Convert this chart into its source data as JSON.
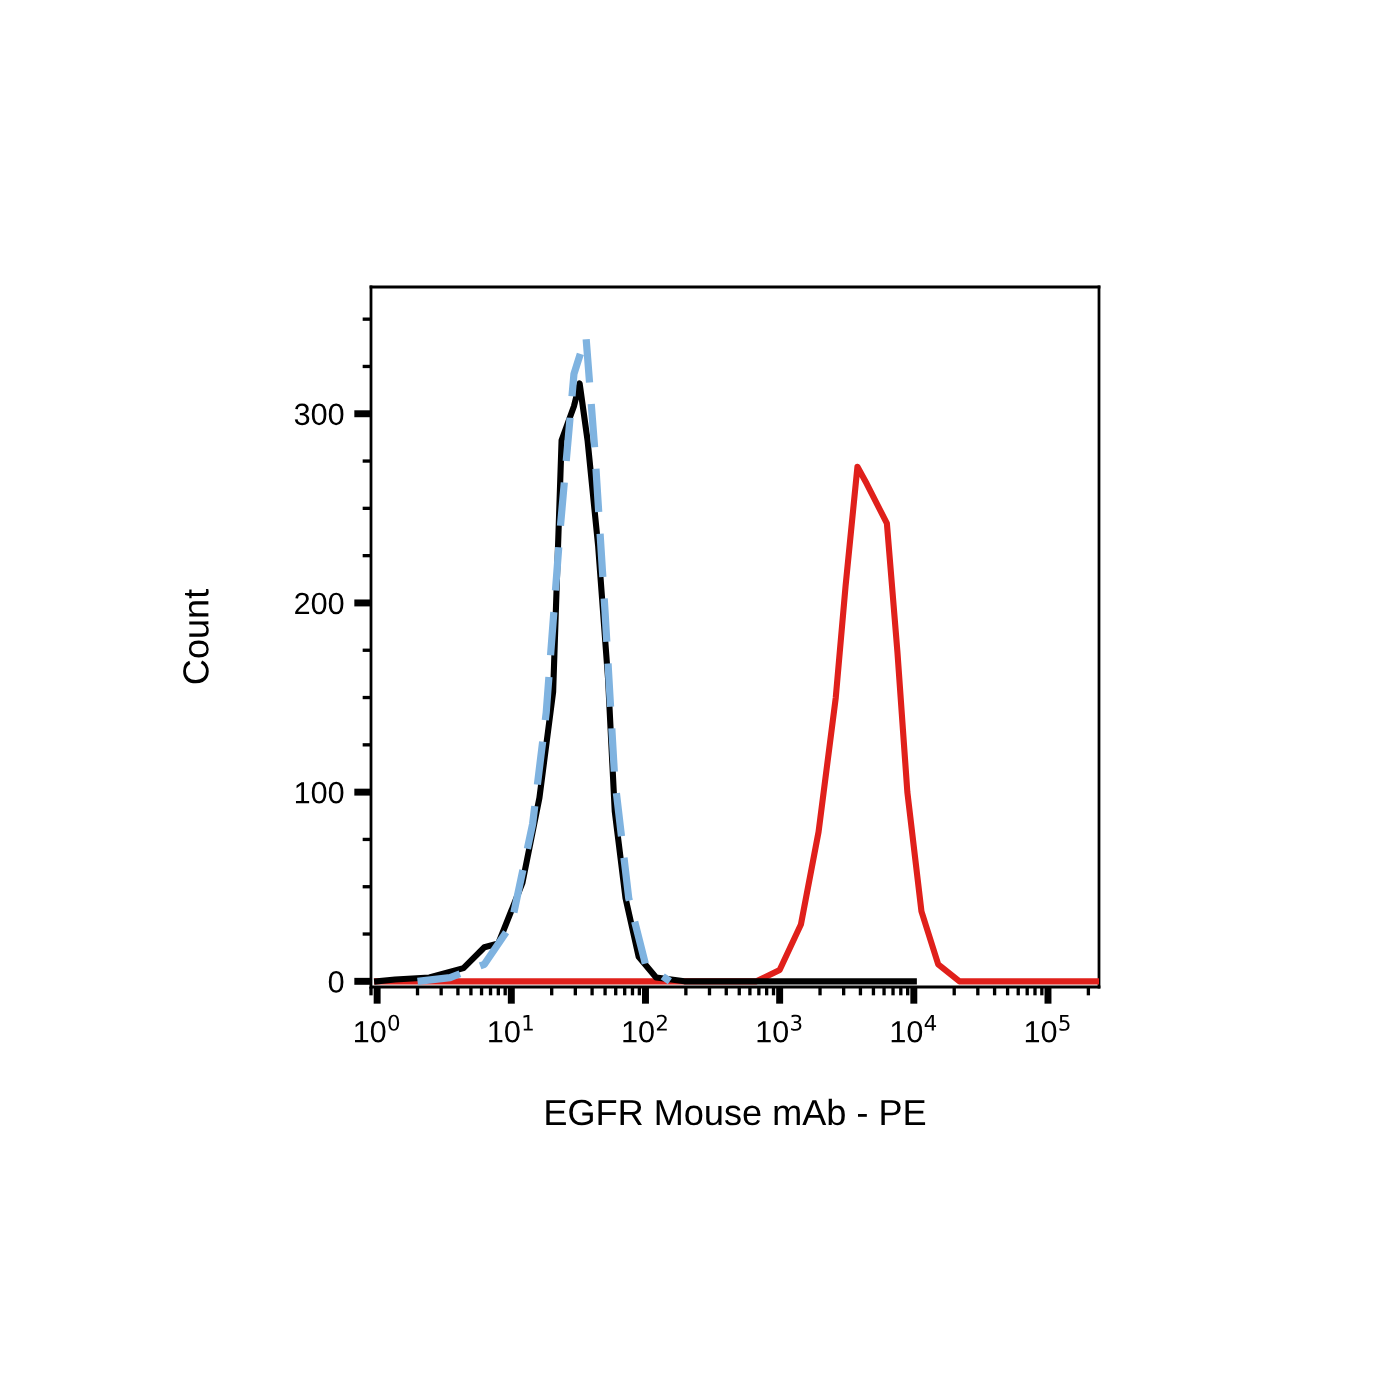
{
  "chart_data": {
    "type": "line",
    "xlabel": "EGFR Mouse mAb - PE",
    "ylabel": "Count",
    "log": "x",
    "xlim": [
      0.9,
      240000
    ],
    "ylim": [
      -3,
      367
    ],
    "xticks": [
      {
        "value": 1,
        "label": "10$^{0}$"
      },
      {
        "value": 10,
        "label": "10$^{1}$"
      },
      {
        "value": 100,
        "label": "10$^{2}$"
      },
      {
        "value": 1000,
        "label": "10$^{3}$"
      },
      {
        "value": 10000,
        "label": "10$^{4}$"
      },
      {
        "value": 100000,
        "label": "10$^{5}$"
      }
    ],
    "yticks": [
      0,
      100,
      200,
      300
    ],
    "marker": "none",
    "series": [
      {
        "color": "#e0201b",
        "line_style": "solid",
        "x": [
          1.0,
          100,
          671,
          1000,
          1440,
          1950,
          2620,
          3100,
          3800,
          4460,
          6300,
          7550,
          8950,
          11400,
          15200,
          21900,
          240000
        ],
        "values": [
          0,
          0,
          0,
          6,
          30,
          79,
          150,
          209,
          272,
          263,
          242,
          174,
          100,
          37,
          9,
          0,
          0
        ]
      },
      {
        "color": "#000000",
        "line_style": "solid",
        "x": [
          1.0,
          1.36,
          2.45,
          4.4,
          6.3,
          8.0,
          12.1,
          16.2,
          20.5,
          23.7,
          29.3,
          32.3,
          37,
          44.4,
          52.6,
          59,
          71,
          89,
          120,
          195,
          10000
        ],
        "values": [
          0,
          1,
          2,
          7,
          18,
          20,
          52,
          97,
          153,
          286,
          304,
          316,
          286,
          230,
          160,
          90,
          44,
          13,
          2,
          0,
          0
        ]
      },
      {
        "color": "#7fb3e0",
        "line_style": "dashed",
        "x": [
          2.0,
          3.5,
          6.3,
          10,
          14.4,
          18.2,
          23,
          29.3,
          36,
          41.7,
          50,
          59,
          75,
          100,
          152
        ],
        "values": [
          0,
          2,
          9,
          30,
          83,
          142,
          237,
          321,
          341,
          283,
          195,
          107,
          44,
          9,
          0
        ]
      }
    ]
  }
}
